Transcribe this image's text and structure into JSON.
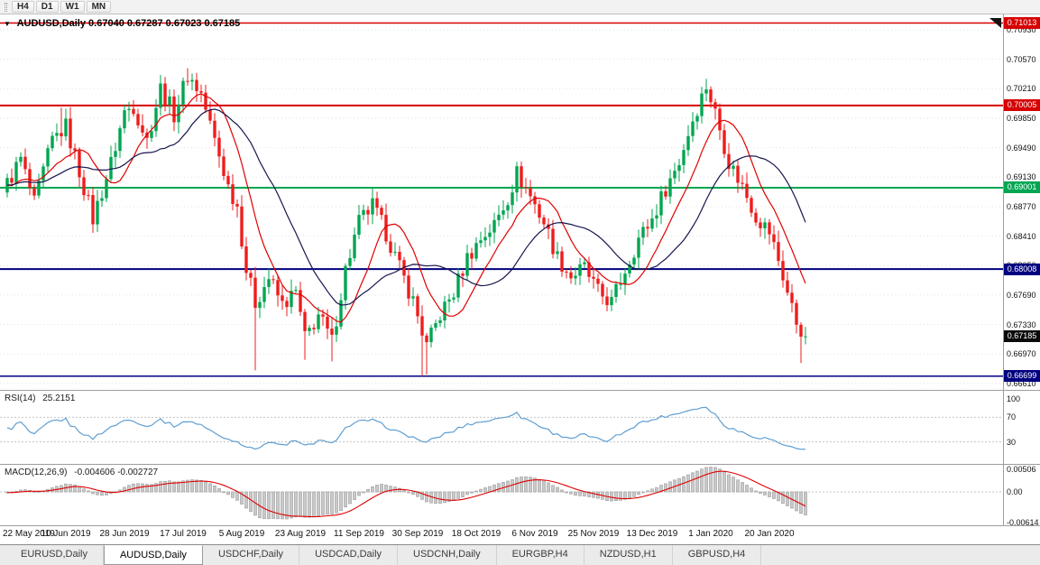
{
  "header": {
    "symbol": "AUDUSD,Daily",
    "ohlc": "0.67040 0.67287 0.67023 0.67185"
  },
  "toolbar": {
    "timeframes": [
      "H4",
      "D1",
      "W1",
      "MN"
    ]
  },
  "tabs": [
    {
      "label": "EURUSD,Daily",
      "active": false
    },
    {
      "label": "AUDUSD,Daily",
      "active": true
    },
    {
      "label": "USDCHF,Daily",
      "active": false
    },
    {
      "label": "USDCAD,Daily",
      "active": false
    },
    {
      "label": "USDCNH,Daily",
      "active": false
    },
    {
      "label": "EURGBP,H4",
      "active": false
    },
    {
      "label": "NZDUSD,H1",
      "active": false
    },
    {
      "label": "GBPUSD,H4",
      "active": false
    }
  ],
  "chart_data": {
    "type": "candlestick",
    "symbol": "AUDUSD",
    "timeframe": "Daily",
    "price": {
      "axis": {
        "top": 0.711174,
        "ppu": 9072,
        "ylim": [
          0.66532,
          0.71117
        ]
      },
      "ticks": [
        "0.70930",
        "0.70570",
        "0.70210",
        "0.69850",
        "0.69490",
        "0.69130",
        "0.68770",
        "0.68410",
        "0.68050",
        "0.67690",
        "0.67330",
        "0.66970",
        "0.66610"
      ],
      "hlines": [
        {
          "price": 0.71013,
          "label": "0.71013",
          "color": "#d60000",
          "lw": 1.5
        },
        {
          "price": 0.70005,
          "label": "0.70005",
          "color": "#d60000",
          "lw": 2
        },
        {
          "price": 0.69001,
          "label": "0.69001",
          "color": "#00a651",
          "lw": 2
        },
        {
          "price": 0.68008,
          "label": "0.68008",
          "color": "#000080",
          "lw": 2
        },
        {
          "price": 0.66699,
          "label": "0.66699",
          "color": "#000080",
          "lw": 1.5
        }
      ],
      "current": 0.67185,
      "current_label": "0.67185",
      "current_box_color": "#0a0a0a",
      "up_color": "#00a650",
      "down_color": "#ee1c1c",
      "count": 178,
      "noise": 0.0022,
      "anchors": [
        [
          0,
          0.6905
        ],
        [
          3,
          0.6935
        ],
        [
          6,
          0.688
        ],
        [
          10,
          0.6958
        ],
        [
          13,
          0.6975
        ],
        [
          16,
          0.692
        ],
        [
          19,
          0.6862
        ],
        [
          23,
          0.693
        ],
        [
          26,
          0.6993
        ],
        [
          28,
          0.7
        ],
        [
          31,
          0.6958
        ],
        [
          34,
          0.7022
        ],
        [
          37,
          0.699
        ],
        [
          40,
          0.7038
        ],
        [
          43,
          0.7015
        ],
        [
          46,
          0.6958
        ],
        [
          49,
          0.6902
        ],
        [
          51,
          0.6878
        ],
        [
          53,
          0.68
        ],
        [
          55,
          0.676
        ],
        [
          58,
          0.679
        ],
        [
          61,
          0.6757
        ],
        [
          64,
          0.6772
        ],
        [
          66,
          0.6716
        ],
        [
          69,
          0.6745
        ],
        [
          72,
          0.6712
        ],
        [
          75,
          0.68
        ],
        [
          78,
          0.6858
        ],
        [
          81,
          0.6878
        ],
        [
          84,
          0.6845
        ],
        [
          87,
          0.6802
        ],
        [
          90,
          0.6762
        ],
        [
          93,
          0.6706
        ],
        [
          96,
          0.6745
        ],
        [
          99,
          0.6772
        ],
        [
          102,
          0.6815
        ],
        [
          105,
          0.6838
        ],
        [
          108,
          0.6855
        ],
        [
          111,
          0.6888
        ],
        [
          113,
          0.6918
        ],
        [
          116,
          0.689
        ],
        [
          119,
          0.6858
        ],
        [
          122,
          0.6815
        ],
        [
          125,
          0.6792
        ],
        [
          128,
          0.6802
        ],
        [
          131,
          0.6772
        ],
        [
          134,
          0.676
        ],
        [
          137,
          0.68
        ],
        [
          140,
          0.6838
        ],
        [
          143,
          0.6862
        ],
        [
          146,
          0.69
        ],
        [
          149,
          0.6932
        ],
        [
          152,
          0.6984
        ],
        [
          155,
          0.7025
        ],
        [
          157,
          0.6992
        ],
        [
          160,
          0.6932
        ],
        [
          163,
          0.6902
        ],
        [
          166,
          0.6866
        ],
        [
          169,
          0.6846
        ],
        [
          171,
          0.6812
        ],
        [
          173,
          0.6772
        ],
        [
          175,
          0.6736
        ],
        [
          177,
          0.67185
        ]
      ],
      "wick_lows": [
        [
          55,
          0.6677
        ],
        [
          66,
          0.669
        ],
        [
          72,
          0.6688
        ],
        [
          92,
          0.667
        ],
        [
          93,
          0.6672
        ],
        [
          176,
          0.6686
        ]
      ],
      "wick_highs": [
        [
          12,
          0.6998
        ],
        [
          40,
          0.7046
        ],
        [
          113,
          0.6929
        ],
        [
          155,
          0.7033
        ]
      ],
      "ma": [
        {
          "period": 10,
          "color": "#e00000"
        },
        {
          "period": 22,
          "color": "#16164e"
        }
      ]
    },
    "dates": {
      "indices": [
        0,
        13,
        26,
        39,
        52,
        65,
        78,
        91,
        104,
        117,
        130,
        143,
        156,
        169
      ],
      "labels": [
        "22 May 2019",
        "10 Jun 2019",
        "28 Jun 2019",
        "17 Jul 2019",
        "5 Aug 2019",
        "23 Aug 2019",
        "11 Sep 2019",
        "30 Sep 2019",
        "18 Oct 2019",
        "6 Nov 2019",
        "25 Nov 2019",
        "13 Dec 2019",
        "1 Jan 2020",
        "20 Jan 2020"
      ]
    },
    "rsi": {
      "name": "RSI(14)",
      "value": "25.2151",
      "period": 14,
      "levels": [
        "100",
        "70",
        "30"
      ],
      "color": "#5f9ed1"
    },
    "macd": {
      "name": "MACD(12,26,9)",
      "value": "-0.004606 -0.002727",
      "fast": 12,
      "slow": 26,
      "signal": 9,
      "top": 0.00506,
      "bottom": -0.00614,
      "scale": [
        "0.00506",
        "0.00",
        "-0.00614"
      ],
      "hist_fill": "#c9c9c9",
      "hist_stroke": "#9a9a9a",
      "signal_color": "#e00000"
    }
  }
}
